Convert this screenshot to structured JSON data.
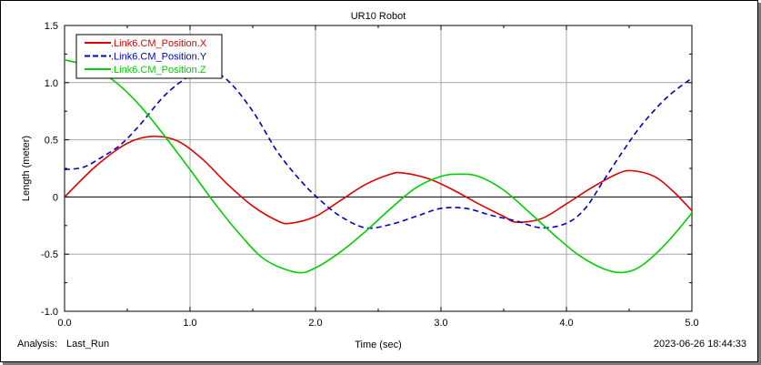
{
  "window": {
    "analysis_label": "Analysis:",
    "analysis_name": "Last_Run",
    "timestamp": "2023-06-26 18:44:33"
  },
  "chart_data": {
    "type": "line",
    "title": "UR10 Robot",
    "xlabel": "Time (sec)",
    "ylabel": "Length (meter)",
    "xlim": [
      0,
      5
    ],
    "ylim": [
      -1,
      1.5
    ],
    "xticks": [
      "0.0",
      "1.0",
      "2.0",
      "3.0",
      "4.0",
      "5.0"
    ],
    "yticks": [
      "1.5",
      "1.0",
      "0.5",
      "0",
      "-0.5",
      "-1.0"
    ],
    "grid": true,
    "legend_position": "top-left",
    "series": [
      {
        "name": ".Link6.CM_Position.X",
        "color": "#e00000",
        "style": "solid",
        "x": [
          0,
          0.25,
          0.5,
          0.7,
          0.9,
          1.1,
          1.3,
          1.5,
          1.7,
          1.8,
          2.0,
          2.2,
          2.4,
          2.6,
          2.7,
          2.9,
          3.1,
          3.3,
          3.5,
          3.6,
          3.8,
          4.0,
          4.2,
          4.4,
          4.52,
          4.7,
          4.85,
          5.0
        ],
        "y": [
          0.0,
          0.27,
          0.47,
          0.53,
          0.49,
          0.33,
          0.11,
          -0.08,
          -0.21,
          -0.23,
          -0.17,
          -0.03,
          0.11,
          0.2,
          0.21,
          0.16,
          0.06,
          -0.06,
          -0.17,
          -0.22,
          -0.19,
          -0.06,
          0.08,
          0.2,
          0.23,
          0.18,
          0.05,
          -0.12
        ]
      },
      {
        "name": ".Link6.CM_Position.Y",
        "color": "#0000c0",
        "style": "dashed",
        "x": [
          0,
          0.15,
          0.3,
          0.45,
          0.6,
          0.8,
          1.0,
          1.15,
          1.3,
          1.5,
          1.7,
          1.9,
          2.05,
          2.2,
          2.4,
          2.6,
          2.8,
          3.0,
          3.2,
          3.4,
          3.6,
          3.8,
          4.0,
          4.15,
          4.3,
          4.45,
          4.6,
          4.8,
          5.0
        ],
        "y": [
          0.24,
          0.26,
          0.35,
          0.46,
          0.63,
          0.89,
          1.06,
          1.1,
          1.02,
          0.75,
          0.39,
          0.12,
          -0.04,
          -0.17,
          -0.27,
          -0.24,
          -0.17,
          -0.1,
          -0.1,
          -0.16,
          -0.21,
          -0.27,
          -0.23,
          -0.1,
          0.15,
          0.4,
          0.63,
          0.87,
          1.04
        ]
      },
      {
        "name": ".Link6.CM_Position.Z",
        "color": "#00d000",
        "style": "solid",
        "x": [
          0,
          0.2,
          0.4,
          0.6,
          0.8,
          1.0,
          1.2,
          1.4,
          1.6,
          1.85,
          2.0,
          2.2,
          2.4,
          2.6,
          2.8,
          3.0,
          3.15,
          3.3,
          3.5,
          3.7,
          3.9,
          4.1,
          4.3,
          4.45,
          4.6,
          4.8,
          5.0
        ],
        "y": [
          1.2,
          1.14,
          1.01,
          0.8,
          0.53,
          0.24,
          -0.06,
          -0.33,
          -0.55,
          -0.66,
          -0.62,
          -0.48,
          -0.3,
          -0.1,
          0.08,
          0.18,
          0.2,
          0.18,
          0.06,
          -0.13,
          -0.33,
          -0.51,
          -0.63,
          -0.66,
          -0.6,
          -0.4,
          -0.14
        ]
      }
    ]
  }
}
